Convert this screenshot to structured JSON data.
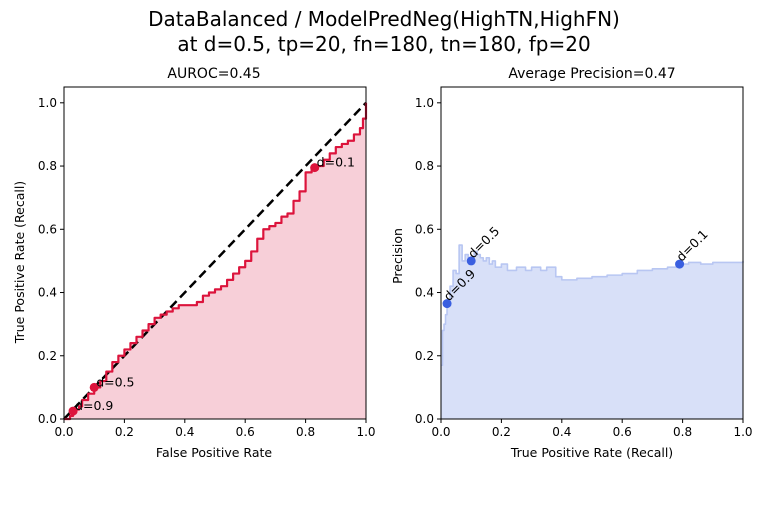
{
  "figure": {
    "suptitle_line1": "DataBalanced / ModelPredNeg(HighTN,HighFN)",
    "suptitle_line2": "at d=0.5, tp=20, fn=180, tn=180, fp=20"
  },
  "chart_data": [
    {
      "type": "line",
      "title": "AUROC=0.45",
      "xlabel": "False Positive Rate",
      "ylabel": "True Positive Rate (Recall)",
      "xlim": [
        0.0,
        1.0
      ],
      "ylim": [
        0.0,
        1.05
      ],
      "xticks": [
        "0.0",
        "0.2",
        "0.4",
        "0.6",
        "0.8",
        "1.0"
      ],
      "yticks": [
        "0.0",
        "0.2",
        "0.4",
        "0.6",
        "0.8",
        "1.0"
      ],
      "grid": false,
      "colors": {
        "curve": "#dc143c",
        "fill": "#f7cfd8",
        "diagonal": "#000000",
        "marker": "#dc143c"
      },
      "series": [
        {
          "x": [
            0.0,
            0.01,
            0.02,
            0.03,
            0.04,
            0.05,
            0.06,
            0.08,
            0.1,
            0.12,
            0.14,
            0.16,
            0.18,
            0.2,
            0.22,
            0.24,
            0.26,
            0.28,
            0.3,
            0.32,
            0.34,
            0.36,
            0.38,
            0.4,
            0.42,
            0.44,
            0.46,
            0.48,
            0.5,
            0.52,
            0.54,
            0.56,
            0.58,
            0.6,
            0.62,
            0.64,
            0.66,
            0.68,
            0.7,
            0.72,
            0.74,
            0.76,
            0.78,
            0.8,
            0.82,
            0.84,
            0.86,
            0.88,
            0.9,
            0.92,
            0.94,
            0.96,
            0.98,
            0.99,
            1.0
          ],
          "y": [
            0.0,
            0.0,
            0.01,
            0.02,
            0.03,
            0.04,
            0.06,
            0.08,
            0.1,
            0.12,
            0.15,
            0.18,
            0.2,
            0.22,
            0.24,
            0.26,
            0.28,
            0.3,
            0.32,
            0.33,
            0.34,
            0.35,
            0.36,
            0.36,
            0.36,
            0.37,
            0.39,
            0.4,
            0.41,
            0.42,
            0.44,
            0.46,
            0.48,
            0.5,
            0.53,
            0.57,
            0.6,
            0.61,
            0.62,
            0.64,
            0.65,
            0.69,
            0.72,
            0.78,
            0.79,
            0.8,
            0.82,
            0.84,
            0.86,
            0.87,
            0.88,
            0.9,
            0.92,
            0.95,
            1.0
          ]
        }
      ],
      "diagonal": {
        "x": [
          0.0,
          1.0
        ],
        "y": [
          0.0,
          1.0
        ]
      },
      "markers": [
        {
          "label": "d=0.9",
          "x": 0.03,
          "y": 0.025
        },
        {
          "label": "d=0.5",
          "x": 0.1,
          "y": 0.1
        },
        {
          "label": "d=0.1",
          "x": 0.83,
          "y": 0.795
        }
      ]
    },
    {
      "type": "area",
      "title": "Average Precision=0.47",
      "xlabel": "True Positive Rate (Recall)",
      "ylabel": "Precision",
      "xlim": [
        0.0,
        1.0
      ],
      "ylim": [
        0.0,
        1.05
      ],
      "xticks": [
        "0.0",
        "0.2",
        "0.4",
        "0.6",
        "0.8",
        "1.0"
      ],
      "yticks": [
        "0.0",
        "0.2",
        "0.4",
        "0.6",
        "0.8",
        "1.0"
      ],
      "grid": false,
      "colors": {
        "curve": "#b8c6f2",
        "fill": "#d8e0f8",
        "marker": "#3a5fe0"
      },
      "series": [
        {
          "x": [
            0.0,
            0.005,
            0.01,
            0.015,
            0.02,
            0.03,
            0.04,
            0.05,
            0.06,
            0.07,
            0.08,
            0.09,
            0.1,
            0.11,
            0.12,
            0.13,
            0.14,
            0.15,
            0.16,
            0.17,
            0.18,
            0.2,
            0.22,
            0.25,
            0.28,
            0.3,
            0.33,
            0.35,
            0.38,
            0.4,
            0.45,
            0.5,
            0.55,
            0.6,
            0.65,
            0.7,
            0.75,
            0.79,
            0.82,
            0.86,
            0.9,
            0.95,
            1.0
          ],
          "y": [
            0.17,
            0.28,
            0.3,
            0.33,
            0.36,
            0.42,
            0.47,
            0.46,
            0.55,
            0.5,
            0.52,
            0.51,
            0.5,
            0.53,
            0.52,
            0.51,
            0.5,
            0.51,
            0.49,
            0.5,
            0.48,
            0.49,
            0.47,
            0.48,
            0.47,
            0.48,
            0.47,
            0.48,
            0.45,
            0.44,
            0.445,
            0.45,
            0.455,
            0.46,
            0.47,
            0.475,
            0.48,
            0.49,
            0.495,
            0.49,
            0.495,
            0.495,
            0.5
          ]
        }
      ],
      "markers": [
        {
          "label": "d=0.9",
          "x": 0.02,
          "y": 0.365
        },
        {
          "label": "d=0.5",
          "x": 0.1,
          "y": 0.5
        },
        {
          "label": "d=0.1",
          "x": 0.79,
          "y": 0.49
        }
      ]
    }
  ]
}
